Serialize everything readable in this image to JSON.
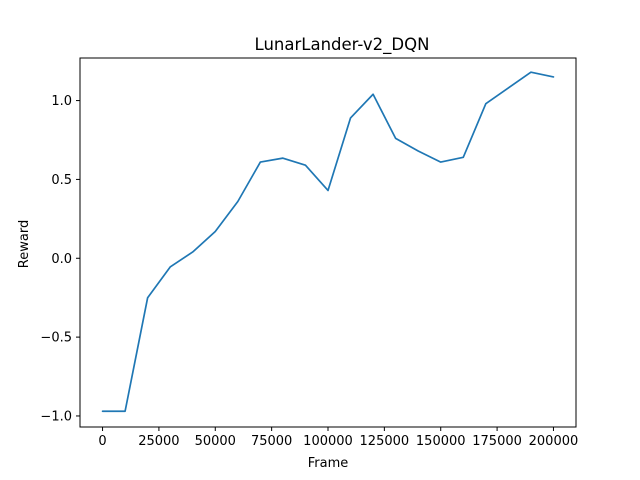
{
  "chart_data": {
    "type": "line",
    "title": "LunarLander-v2_DQN",
    "xlabel": "Frame",
    "ylabel": "Reward",
    "xlim": [
      -10000,
      210000
    ],
    "ylim": [
      -1.07,
      1.27
    ],
    "xticks": [
      0,
      25000,
      50000,
      75000,
      100000,
      125000,
      150000,
      175000,
      200000
    ],
    "xtick_labels": [
      "0",
      "25000",
      "50000",
      "75000",
      "100000",
      "125000",
      "150000",
      "175000",
      "200000"
    ],
    "yticks": [
      -1.0,
      -0.5,
      0.0,
      0.5,
      1.0
    ],
    "ytick_labels": [
      "−1.0",
      "−0.5",
      "0.0",
      "0.5",
      "1.0"
    ],
    "grid": false,
    "series": [
      {
        "color": "#1f77b4",
        "x": [
          0,
          10000,
          20000,
          30000,
          40000,
          50000,
          60000,
          70000,
          80000,
          90000,
          100000,
          110000,
          120000,
          130000,
          140000,
          150000,
          160000,
          170000,
          180000,
          190000,
          200000
        ],
        "y": [
          -0.97,
          -0.97,
          -0.25,
          -0.055,
          0.04,
          0.17,
          0.36,
          0.61,
          0.635,
          0.59,
          0.43,
          0.89,
          1.04,
          0.76,
          0.68,
          0.61,
          0.64,
          0.98,
          1.08,
          1.18,
          1.15
        ]
      }
    ]
  }
}
